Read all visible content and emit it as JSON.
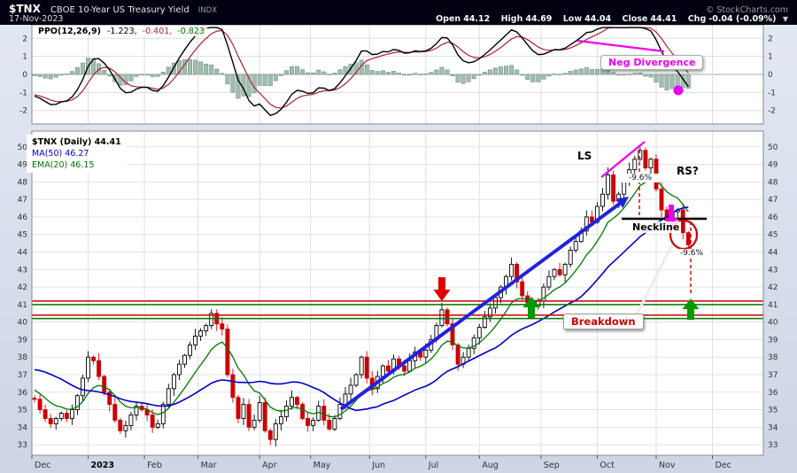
{
  "header": {
    "symbol": "$TNX",
    "name": "CBOE 10-Year US Treasury Yield",
    "exchange": "INDX",
    "date": "17-Nov-2023",
    "copyright": "© StockCharts.com",
    "quote": {
      "open_label": "Open",
      "open": "44.12",
      "high_label": "High",
      "high": "44.69",
      "low_label": "Low",
      "low": "44.04",
      "close_label": "Close",
      "close": "44.41",
      "chg_label": "Chg",
      "chg": "-0.04 (-0.09%)",
      "direction_icon": "▼"
    }
  },
  "ppo_panel": {
    "legend_label": "PPO(12,26,9)",
    "ppo_value": "-1.223,",
    "signal_value": "-0.401,",
    "hist_value": "-0.823"
  },
  "price_panel": {
    "legend_symbol": "$TNX (Daily) 44.41",
    "legend_ma": "MA(50) 46.27",
    "legend_ema": "EMA(20) 46.15"
  },
  "annotations": {
    "neg_divergence": "Neg Divergence",
    "ls": "LS",
    "rs": "RS?",
    "neckline": "Neckline",
    "pct_head": "-9.6%",
    "pct_target": "-9.6%",
    "breakdown": "Breakdown"
  },
  "chart_data": {
    "type": "candlestick",
    "title": "$TNX CBOE 10-Year US Treasury Yield INDX, daily, with PPO(12,26,9) momentum panel",
    "x_months": [
      "Dec",
      "2023",
      "Feb",
      "Mar",
      "Apr",
      "May",
      "Jun",
      "Jul",
      "Aug",
      "Sep",
      "Oct",
      "Nov",
      "Dec"
    ],
    "month_start_days": [
      0,
      21,
      42,
      62,
      85,
      104,
      126,
      147,
      167,
      190,
      211,
      233,
      254
    ],
    "total_days": 273,
    "sample_interval_days": 2,
    "price": {
      "ylim": [
        32.4,
        50.9
      ],
      "y_ticks": [
        50,
        49,
        48,
        47,
        46,
        45,
        44,
        43,
        42,
        41,
        40,
        39,
        38,
        37,
        36,
        35,
        34,
        33
      ],
      "pre_closes": [
        36.3,
        36.8,
        37.3,
        37.9,
        38.4,
        38.9,
        39.3,
        39.6,
        39.4,
        39.0,
        38.6,
        38.2,
        37.8,
        37.4,
        37.1,
        36.8,
        36.5,
        36.3,
        36.1,
        35.95,
        35.85,
        35.75,
        35.7,
        35.65
      ],
      "closes": [
        35.6,
        35.0,
        34.5,
        34.2,
        34.5,
        34.8,
        34.5,
        35.0,
        35.8,
        36.8,
        38.0,
        37.8,
        36.9,
        36.0,
        35.3,
        34.4,
        33.8,
        34.1,
        34.7,
        35.2,
        35.0,
        34.7,
        34.0,
        34.2,
        35.3,
        36.2,
        37.0,
        37.6,
        38.1,
        38.7,
        39.2,
        39.5,
        39.8,
        40.5,
        39.9,
        39.6,
        37.0,
        35.7,
        34.5,
        35.3,
        34.0,
        34.4,
        35.4,
        33.8,
        33.3,
        34.2,
        34.6,
        35.2,
        35.7,
        35.3,
        34.5,
        34.1,
        34.4,
        35.2,
        34.4,
        33.9,
        34.5,
        35.3,
        35.9,
        36.4,
        37.0,
        38.0,
        36.8,
        36.2,
        36.9,
        37.5,
        37.2,
        37.9,
        37.5,
        37.2,
        37.8,
        38.3,
        38.0,
        38.4,
        39.0,
        39.8,
        40.7,
        39.9,
        38.7,
        37.6,
        38.0,
        38.5,
        39.1,
        39.7,
        40.3,
        40.8,
        41.4,
        42.0,
        42.6,
        43.3,
        42.3,
        41.5,
        41.1,
        40.9,
        41.2,
        42.0,
        42.6,
        43.0,
        42.7,
        43.3,
        44.1,
        44.6,
        45.2,
        46.0,
        45.7,
        46.6,
        47.3,
        48.4,
        46.9,
        47.3,
        48.1,
        48.7,
        49.3,
        49.8,
        48.8,
        49.3,
        47.6,
        46.4,
        45.8,
        46.3,
        46.4,
        45.1,
        44.41
      ],
      "last_close": 44.41,
      "ma50_last": 46.27,
      "ema20_last": 46.15,
      "support_lines": {
        "red": [
          41.2,
          40.4
        ],
        "green": [
          41.0,
          40.2
        ]
      },
      "neckline_level": 45.9
    },
    "ppo": {
      "ylim": [
        -2.75,
        2.75
      ],
      "y_ticks": [
        2,
        1,
        0,
        -1,
        -2
      ],
      "params": [
        12,
        26,
        9
      ],
      "last_values": [
        -1.223,
        -0.401,
        -0.823
      ]
    },
    "colors": {
      "candle_up": "#000000",
      "candle_down": "#cc0000",
      "ma50": "#0000cc",
      "ema20": "#007700",
      "ppo_line": "#000000",
      "signal_line": "#aa2233",
      "hist_fill": "#a3bdb0",
      "hist_stroke": "#6e9684",
      "magenta": "#ee00ee",
      "red": "#cc0000",
      "green": "#009900",
      "blue_arrow": "#2222dd"
    }
  }
}
